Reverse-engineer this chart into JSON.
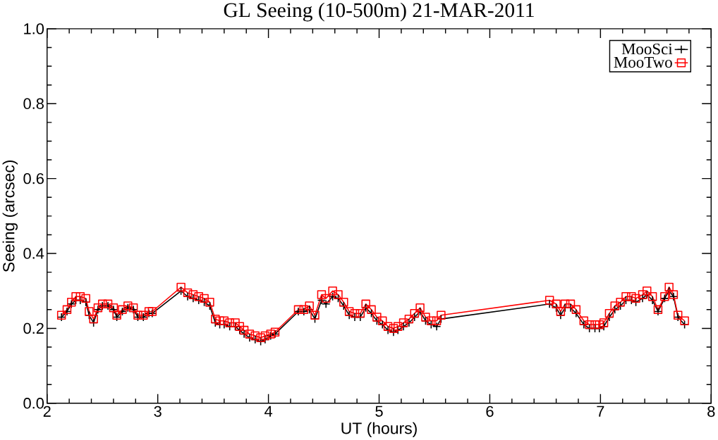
{
  "chart_data": {
    "type": "line",
    "title": "GL Seeing (10-500m) 21-MAR-2011",
    "xlabel": "UT (hours)",
    "ylabel": "Seeing (arcsec)",
    "xlim": [
      2,
      8
    ],
    "xticks": [
      2,
      3,
      4,
      5,
      6,
      7,
      8
    ],
    "ylim": [
      0.0,
      1.0
    ],
    "yticks": [
      {
        "value": 0.0,
        "label": "0.0"
      },
      {
        "value": 0.2,
        "label": "0.2"
      },
      {
        "value": 0.4,
        "label": "0.4"
      },
      {
        "value": 0.6,
        "label": "0.6"
      },
      {
        "value": 0.8,
        "label": "0.8"
      },
      {
        "value": 1.0,
        "label": "1.0"
      }
    ],
    "legend": "top right",
    "x": [
      2.13,
      2.18,
      2.22,
      2.26,
      2.3,
      2.35,
      2.38,
      2.42,
      2.46,
      2.5,
      2.55,
      2.6,
      2.63,
      2.68,
      2.73,
      2.78,
      2.82,
      2.87,
      2.92,
      2.95,
      3.21,
      3.27,
      3.32,
      3.37,
      3.42,
      3.47,
      3.52,
      3.56,
      3.6,
      3.65,
      3.7,
      3.74,
      3.78,
      3.83,
      3.88,
      3.93,
      3.97,
      4.02,
      4.06,
      4.27,
      4.32,
      4.37,
      4.42,
      4.48,
      4.52,
      4.58,
      4.63,
      4.68,
      4.73,
      4.78,
      4.83,
      4.88,
      4.93,
      4.98,
      5.03,
      5.08,
      5.13,
      5.17,
      5.22,
      5.27,
      5.32,
      5.37,
      5.42,
      5.47,
      5.52,
      5.56,
      6.54,
      6.6,
      6.64,
      6.68,
      6.73,
      6.78,
      6.85,
      6.9,
      6.95,
      6.99,
      7.03,
      7.08,
      7.13,
      7.18,
      7.23,
      7.28,
      7.32,
      7.38,
      7.42,
      7.47,
      7.52,
      7.58,
      7.62,
      7.66,
      7.7,
      7.76
    ],
    "series": [
      {
        "name": "MooSci",
        "color": "#000000",
        "marker": "cross",
        "values": [
          0.23,
          0.245,
          0.265,
          0.275,
          0.275,
          0.27,
          0.235,
          0.215,
          0.25,
          0.26,
          0.26,
          0.25,
          0.23,
          0.245,
          0.255,
          0.25,
          0.23,
          0.23,
          0.24,
          0.24,
          0.3,
          0.285,
          0.28,
          0.275,
          0.27,
          0.26,
          0.215,
          0.21,
          0.21,
          0.205,
          0.205,
          0.195,
          0.185,
          0.175,
          0.17,
          0.165,
          0.17,
          0.18,
          0.185,
          0.245,
          0.245,
          0.25,
          0.225,
          0.275,
          0.265,
          0.285,
          0.28,
          0.26,
          0.235,
          0.23,
          0.23,
          0.255,
          0.24,
          0.22,
          0.21,
          0.195,
          0.19,
          0.195,
          0.205,
          0.215,
          0.23,
          0.245,
          0.22,
          0.21,
          0.205,
          0.225,
          0.265,
          0.255,
          0.235,
          0.255,
          0.255,
          0.24,
          0.21,
          0.2,
          0.2,
          0.2,
          0.205,
          0.23,
          0.25,
          0.26,
          0.275,
          0.275,
          0.27,
          0.28,
          0.29,
          0.275,
          0.245,
          0.28,
          0.3,
          0.285,
          0.23,
          0.21
        ]
      },
      {
        "name": "MooTwo",
        "color": "#ff0000",
        "marker": "square",
        "values": [
          0.235,
          0.25,
          0.27,
          0.285,
          0.285,
          0.28,
          0.245,
          0.225,
          0.255,
          0.265,
          0.265,
          0.255,
          0.235,
          0.25,
          0.26,
          0.255,
          0.235,
          0.235,
          0.245,
          0.245,
          0.31,
          0.295,
          0.29,
          0.285,
          0.28,
          0.27,
          0.225,
          0.22,
          0.22,
          0.215,
          0.215,
          0.205,
          0.195,
          0.185,
          0.18,
          0.175,
          0.18,
          0.185,
          0.19,
          0.25,
          0.25,
          0.26,
          0.235,
          0.29,
          0.28,
          0.3,
          0.29,
          0.27,
          0.245,
          0.24,
          0.24,
          0.265,
          0.25,
          0.23,
          0.22,
          0.205,
          0.2,
          0.205,
          0.215,
          0.225,
          0.24,
          0.255,
          0.23,
          0.22,
          0.22,
          0.235,
          0.275,
          0.265,
          0.245,
          0.265,
          0.265,
          0.25,
          0.22,
          0.21,
          0.21,
          0.21,
          0.215,
          0.24,
          0.26,
          0.27,
          0.285,
          0.285,
          0.28,
          0.29,
          0.3,
          0.285,
          0.25,
          0.285,
          0.31,
          0.29,
          0.235,
          0.22
        ]
      }
    ]
  }
}
